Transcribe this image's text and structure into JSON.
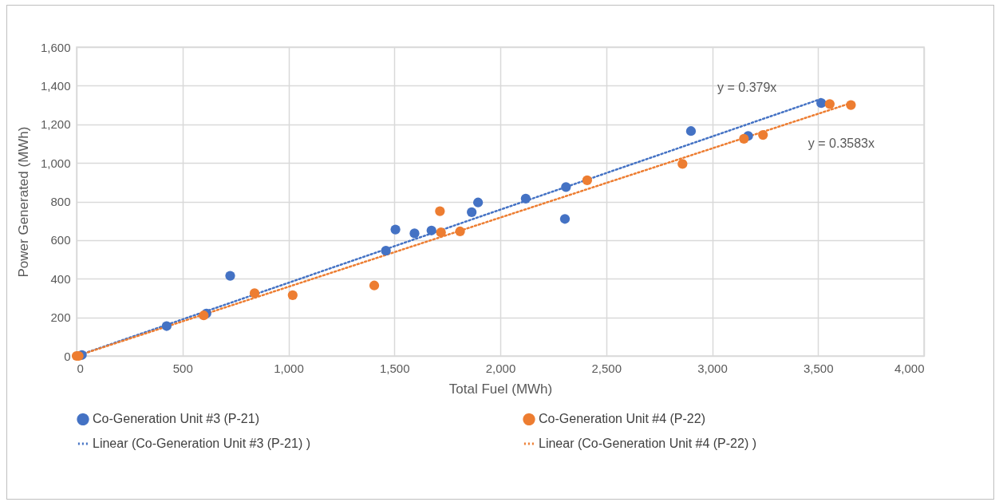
{
  "chart_data": {
    "type": "scatter",
    "xlabel": "Total Fuel (MWh)",
    "ylabel": "Power Generated (MWh)",
    "xlim": [
      0,
      4000
    ],
    "ylim": [
      0,
      1600
    ],
    "xticks": [
      {
        "value": 0,
        "label": "0"
      },
      {
        "value": 500,
        "label": "500"
      },
      {
        "value": 1000,
        "label": "1,000"
      },
      {
        "value": 1500,
        "label": "1,500"
      },
      {
        "value": 2000,
        "label": "2,000"
      },
      {
        "value": 2500,
        "label": "2,500"
      },
      {
        "value": 3000,
        "label": "3,000"
      },
      {
        "value": 3500,
        "label": "3,500"
      },
      {
        "value": 4000,
        "label": "4,000"
      }
    ],
    "yticks": [
      {
        "value": 0,
        "label": "0"
      },
      {
        "value": 200,
        "label": "200"
      },
      {
        "value": 400,
        "label": "400"
      },
      {
        "value": 600,
        "label": "600"
      },
      {
        "value": 800,
        "label": "800"
      },
      {
        "value": 1000,
        "label": "1,000"
      },
      {
        "value": 1200,
        "label": "1,200"
      },
      {
        "value": 1400,
        "label": "1,400"
      },
      {
        "value": 1600,
        "label": "1,600"
      }
    ],
    "grid": true,
    "legend": "bottom",
    "marker": "circle",
    "series": [
      {
        "name": "Co-Generation Unit #3 (P-21)",
        "color": "#4472c4",
        "x": [
          25,
          425,
          613,
          725,
          1460,
          1505,
          1595,
          1675,
          1865,
          1895,
          2120,
          2310,
          2305,
          2900,
          3170,
          3515
        ],
        "values": [
          5,
          155,
          220,
          415,
          545,
          655,
          635,
          650,
          745,
          795,
          815,
          875,
          710,
          1165,
          1140,
          1310
        ]
      },
      {
        "name": "Co-Generation Unit #4 (P-22)",
        "color": "#ed7d31",
        "x": [
          0,
          10,
          600,
          840,
          1020,
          1405,
          1715,
          1720,
          1810,
          2410,
          2860,
          3150,
          3240,
          3555,
          3655
        ],
        "values": [
          0,
          0,
          210,
          325,
          315,
          365,
          750,
          640,
          645,
          910,
          995,
          1125,
          1145,
          1305,
          1300
        ]
      },
      {
        "name": "Linear (Co-Generation Unit #3 (P-21) )",
        "type": "line",
        "line_style": "dotted",
        "marker": "none",
        "color": "#4472c4",
        "x": [
          0,
          3515
        ],
        "values": [
          0,
          1332
        ]
      },
      {
        "name": "Linear (Co-Generation Unit #4 (P-22) )",
        "type": "line",
        "line_style": "dotted",
        "marker": "none",
        "color": "#ed7d31",
        "x": [
          0,
          3655
        ],
        "values": [
          0,
          1310
        ]
      }
    ],
    "annotations": [
      "y = 0.379x",
      "y = 0.3583x"
    ]
  }
}
